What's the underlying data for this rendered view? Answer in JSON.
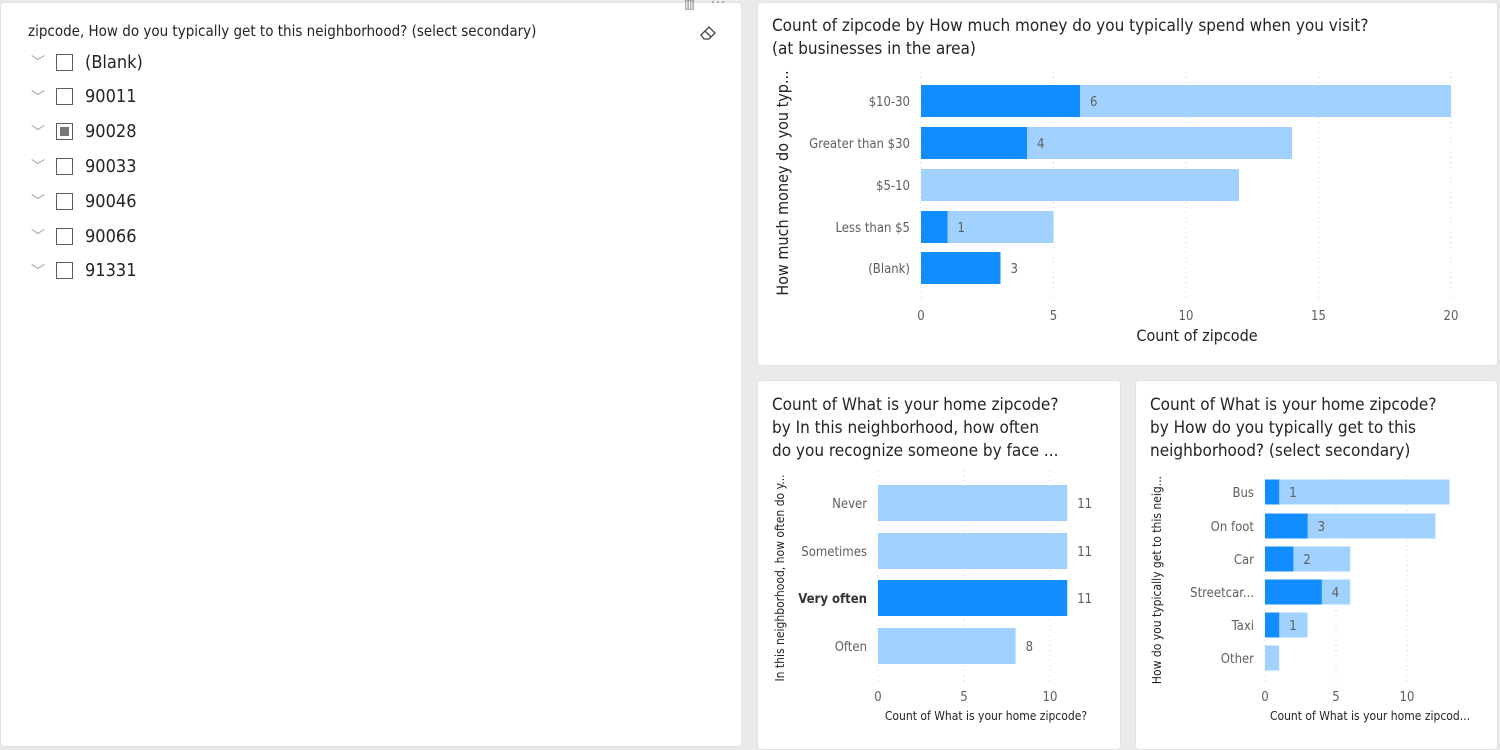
{
  "slicer": {
    "title": "zipcode, How do you typically get to this neighborhood? (select secondary)",
    "items": [
      {
        "label": "(Blank)",
        "checked": false
      },
      {
        "label": "90011",
        "checked": false
      },
      {
        "label": "90028",
        "checked": "partial"
      },
      {
        "label": "90033",
        "checked": false
      },
      {
        "label": "90046",
        "checked": false
      },
      {
        "label": "90066",
        "checked": false
      },
      {
        "label": "91331",
        "checked": false
      }
    ],
    "icons": [
      "chevron-down-icon",
      "eraser-icon",
      "focus-mode-icon",
      "more-options-icon"
    ]
  },
  "colors": {
    "highlight": "#118DFF",
    "base": "#A0D1FF",
    "grid": "#d0d0d0",
    "text": "#605E5C"
  },
  "chart_data": [
    {
      "type": "bar",
      "orientation": "horizontal",
      "title": "Count of zipcode by How much money do you typically spend when you visit? (at businesses in the area)",
      "title_lines": [
        "Count of zipcode by How much money do you typically spend when you visit?",
        "(at businesses in the area)"
      ],
      "xlabel": "Count of zipcode",
      "ylabel": "How much money do you typ...",
      "categories": [
        "$10-30",
        "Greater than $30",
        "$5-10",
        "Less than $5",
        "(Blank)"
      ],
      "series": [
        {
          "name": "total",
          "values": [
            20,
            14,
            12,
            5,
            3
          ]
        },
        {
          "name": "highlighted",
          "values": [
            6,
            4,
            0,
            1,
            3
          ]
        }
      ],
      "data_labels": [
        "6",
        "4",
        "",
        "1",
        "3"
      ],
      "xticks": [
        "0",
        "5",
        "10",
        "15",
        "20"
      ],
      "xlim": [
        0,
        20
      ],
      "grid": true
    },
    {
      "type": "bar",
      "orientation": "horizontal",
      "title": "Count of What is your home zipcode? by In this neighborhood, how often do you recognize someone by face ...",
      "title_lines": [
        "Count of What is your home zipcode?",
        "by In this neighborhood, how often",
        "do you recognize someone by face ..."
      ],
      "xlabel": "Count of What is your home zipcode?",
      "ylabel": "In this neighborhood, how often do y...",
      "categories": [
        "Never",
        "Sometimes",
        "Very often",
        "Often"
      ],
      "selected_category": "Very often",
      "series": [
        {
          "name": "total",
          "values": [
            11,
            11,
            11,
            8
          ]
        },
        {
          "name": "highlighted",
          "values": [
            0,
            0,
            11,
            0
          ]
        }
      ],
      "data_labels": [
        "11",
        "11",
        "11",
        "8"
      ],
      "xticks": [
        "0",
        "5",
        "10"
      ],
      "xlim": [
        0,
        11
      ],
      "grid": true
    },
    {
      "type": "bar",
      "orientation": "horizontal",
      "title": "Count of What is your home zipcode? by How do you typically get to this neighborhood? (select secondary)",
      "title_lines": [
        "Count of What is your home zipcode?",
        "by How do you typically get to this",
        "neighborhood? (select secondary)"
      ],
      "xlabel": "Count of What is your home zipcod...",
      "ylabel": "How do you typically get to this neig...",
      "categories": [
        "Bus",
        "On foot",
        "Car",
        "Streetcar...",
        "Taxi",
        "Other"
      ],
      "series": [
        {
          "name": "total",
          "values": [
            13,
            12,
            6,
            6,
            3,
            1
          ]
        },
        {
          "name": "highlighted",
          "values": [
            1,
            3,
            2,
            4,
            1,
            0
          ]
        }
      ],
      "data_labels": [
        "1",
        "3",
        "2",
        "4",
        "1",
        ""
      ],
      "xticks": [
        "0",
        "5",
        "10"
      ],
      "xlim": [
        0,
        13
      ],
      "grid": true
    }
  ]
}
